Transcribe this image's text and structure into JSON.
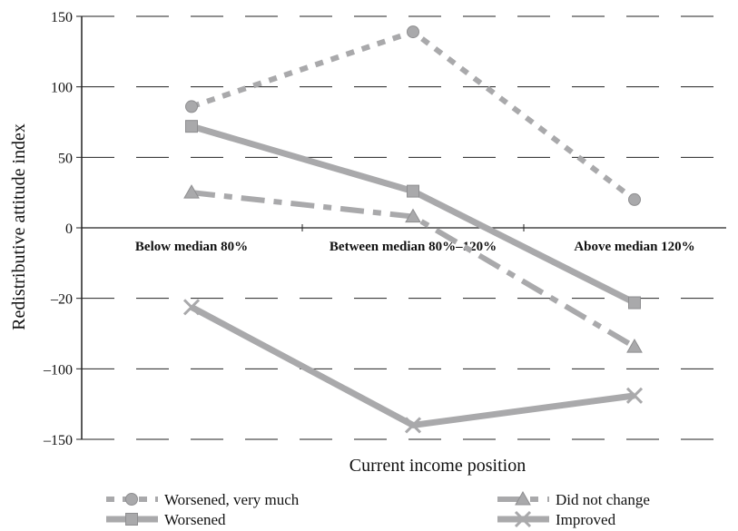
{
  "chart_data": {
    "type": "line",
    "xlabel": "Current income position",
    "ylabel": "Redistributive attitude index",
    "categories": [
      "Below median 80%",
      "Between median 80%–120%",
      "Above median 120%"
    ],
    "y_ticks": [
      "150",
      "100",
      "50",
      "0",
      "–20",
      "–100",
      "–150"
    ],
    "grid": true,
    "legend_position": "bottom",
    "series": [
      {
        "name": "Worsened, very much",
        "marker": "circle",
        "line": "dotted",
        "color": "#a9a9ab",
        "values": [
          86,
          139,
          20
        ]
      },
      {
        "name": "Worsened",
        "marker": "square",
        "line": "solid",
        "color": "#a9a9ab",
        "values": [
          72,
          26,
          -25
        ]
      },
      {
        "name": "Did not change",
        "marker": "triangle",
        "line": "dash-dot",
        "color": "#a9a9ab",
        "values": [
          25,
          8,
          -75
        ]
      },
      {
        "name": "Improved",
        "marker": "x",
        "line": "solid",
        "color": "#a9a9ab",
        "values": [
          -30,
          -140,
          -119
        ]
      }
    ]
  }
}
